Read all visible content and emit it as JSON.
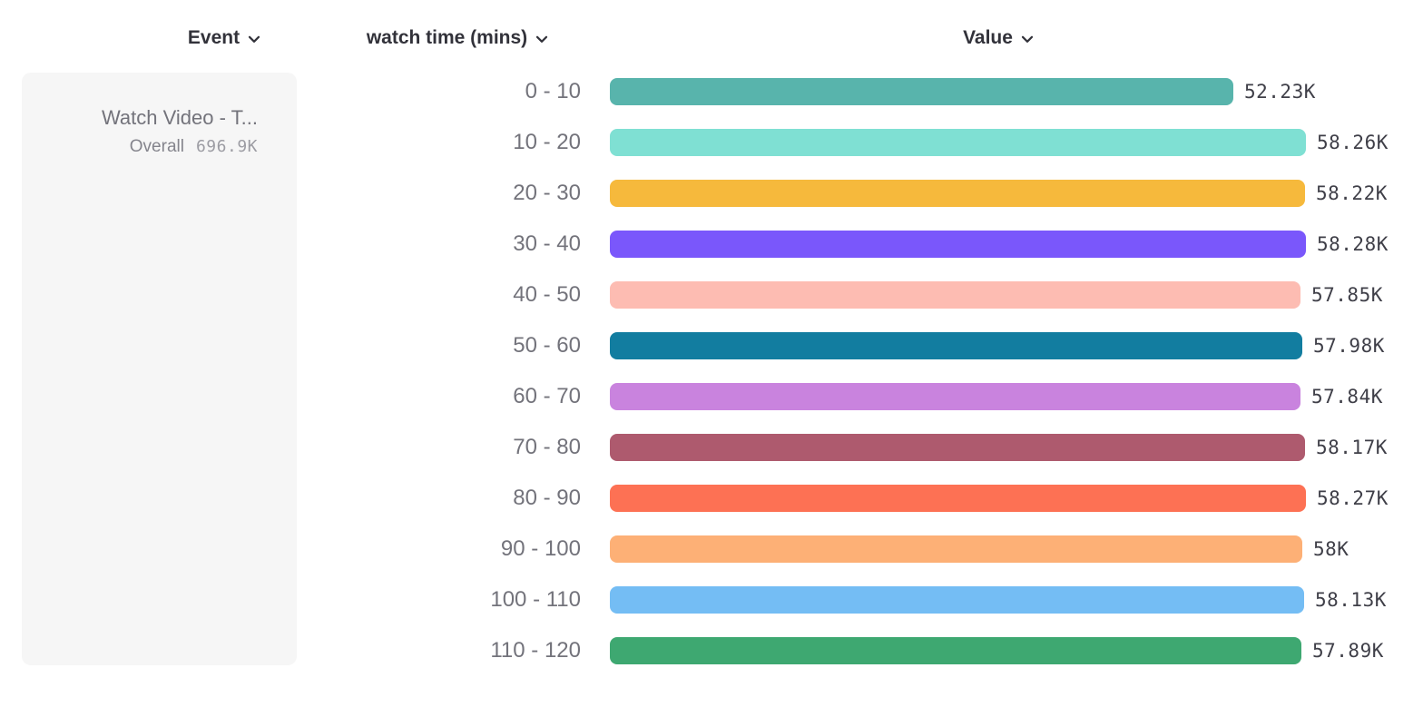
{
  "header": {
    "columns": [
      {
        "id": "event",
        "label": "Event"
      },
      {
        "id": "breakdown",
        "label": "watch time (mins)"
      },
      {
        "id": "value",
        "label": "Value"
      }
    ]
  },
  "event_card": {
    "title": "Watch Video - T...",
    "overall_label": "Overall",
    "overall_value": "696.9K"
  },
  "chart_data": {
    "type": "bar",
    "orientation": "horizontal",
    "title": "",
    "xlabel": "Value",
    "ylabel": "watch time (mins)",
    "categories": [
      "0 - 10",
      "10 - 20",
      "20 - 30",
      "30 - 40",
      "40 - 50",
      "50 - 60",
      "60 - 70",
      "70 - 80",
      "80 - 90",
      "90 - 100",
      "100 - 110",
      "110 - 120"
    ],
    "values": [
      52230,
      58260,
      58220,
      58280,
      57850,
      57980,
      57840,
      58170,
      58270,
      58000,
      58130,
      57890
    ],
    "display_values": [
      "52.23K",
      "58.26K",
      "58.22K",
      "58.28K",
      "57.85K",
      "57.98K",
      "57.84K",
      "58.17K",
      "58.27K",
      "58K",
      "58.13K",
      "57.89K"
    ],
    "bar_colors": [
      "#58b4ac",
      "#7fe0d3",
      "#f6b93c",
      "#7a57fb",
      "#fdbcb2",
      "#127da0",
      "#c983de",
      "#ae5a6e",
      "#fd7154",
      "#fdb076",
      "#74bdf4",
      "#3ea871"
    ],
    "xlim": [
      0,
      58280
    ],
    "grid": false,
    "legend": false
  }
}
